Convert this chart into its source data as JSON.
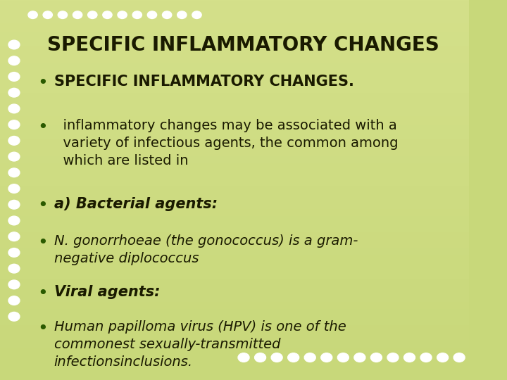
{
  "title": "SPECIFIC INFLAMMATORY CHANGES",
  "title_color": "#1a1a00",
  "bg_color_top": "#c8d87a",
  "bg_color_bottom": "#d4e08a",
  "dot_color": "#ffffff",
  "bullet_color": "#3a6e00",
  "bullet_items": [
    {
      "text": "SPECIFIC INFLAMMATORY CHANGES.",
      "bold": true,
      "italic": false,
      "indent": 0,
      "size": 15
    },
    {
      "text": "  inflammatory changes may be associated with a\n  variety of infectious agents, the common among\n  which are listed in",
      "bold": false,
      "italic": false,
      "indent": 0,
      "size": 14
    },
    {
      "text": "a) Bacterial agents:",
      "bold": true,
      "italic": true,
      "indent": 0,
      "size": 15
    },
    {
      "text": "N. gonorrhoeae (the gonococcus) is a gram-\nnegative diplococcus",
      "bold": false,
      "italic": true,
      "indent": 0,
      "size": 14
    },
    {
      "text": "Viral agents:",
      "bold": true,
      "italic": true,
      "indent": 0,
      "size": 15
    },
    {
      "text": "Human papilloma virus (HPV) is one of the\ncommonest sexually-transmitted\ninfectionsinclusions.",
      "bold": false,
      "italic": true,
      "indent": 0,
      "size": 14
    }
  ]
}
